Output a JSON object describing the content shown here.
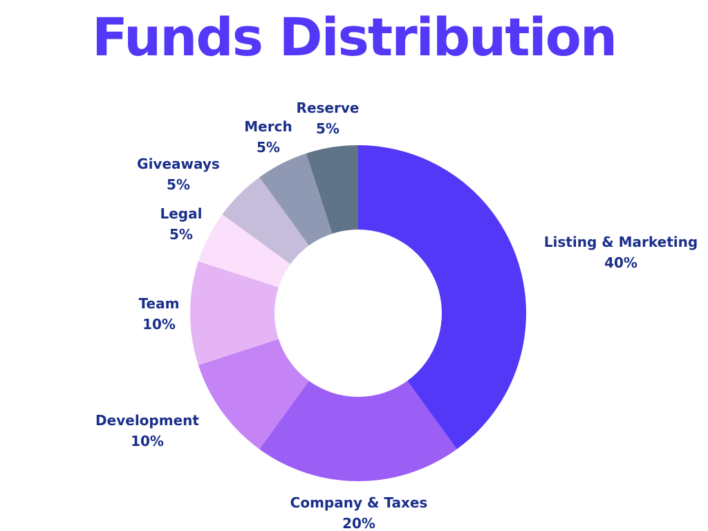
{
  "title": "Funds Distribution",
  "chart_data": {
    "type": "pie",
    "title": "Funds Distribution",
    "unit": "%",
    "slices": [
      {
        "label": "Listing & Marketing",
        "value": 40,
        "display": "40%",
        "color": "#5438f8"
      },
      {
        "label": "Company & Taxes",
        "value": 20,
        "display": "20%",
        "color": "#9b5ff5"
      },
      {
        "label": "Development",
        "value": 10,
        "display": "10%",
        "color": "#c484f5"
      },
      {
        "label": "Team",
        "value": 10,
        "display": "10%",
        "color": "#e4b4f5"
      },
      {
        "label": "Legal",
        "value": 5,
        "display": "5%",
        "color": "#fbe0fb"
      },
      {
        "label": "Giveaways",
        "value": 5,
        "display": "5%",
        "color": "#c6bddb"
      },
      {
        "label": "Merch",
        "value": 5,
        "display": "5%",
        "color": "#8f99b3"
      },
      {
        "label": "Reserve",
        "value": 5,
        "display": "5%",
        "color": "#607488"
      }
    ]
  }
}
